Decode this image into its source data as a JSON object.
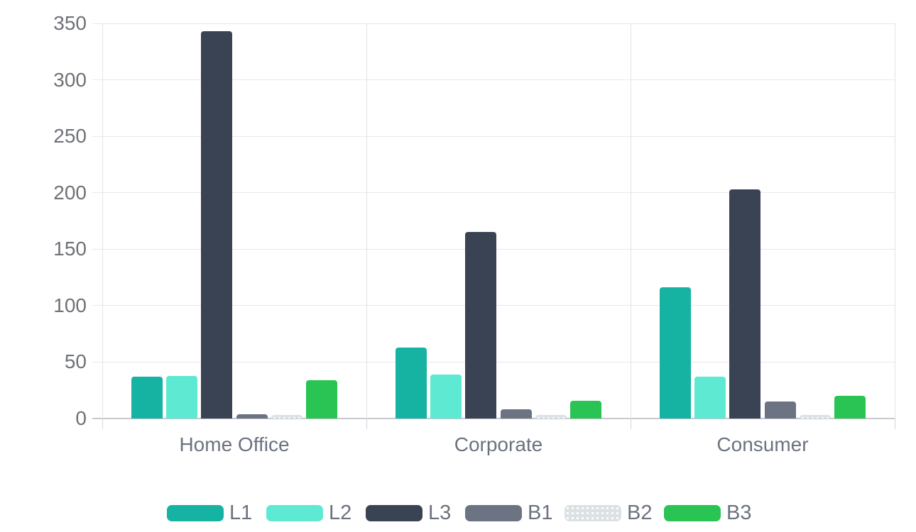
{
  "chart_data": {
    "type": "bar",
    "title": "",
    "xlabel": "",
    "ylabel": "",
    "categories": [
      "Home Office",
      "Corporate",
      "Consumer"
    ],
    "series": [
      {
        "name": "L1",
        "color": "#16b2a2",
        "pattern": "solid",
        "values": [
          37,
          63,
          116
        ]
      },
      {
        "name": "L2",
        "color": "#5ee9d3",
        "pattern": "solid",
        "values": [
          38,
          39,
          37
        ]
      },
      {
        "name": "L3",
        "color": "#394353",
        "pattern": "solid",
        "values": [
          343,
          165,
          203
        ]
      },
      {
        "name": "B1",
        "color": "#6c7383",
        "pattern": "solid",
        "values": [
          4,
          8,
          15
        ]
      },
      {
        "name": "B2",
        "color": "#dce1e4",
        "pattern": "dots",
        "values": [
          3,
          3,
          3
        ]
      },
      {
        "name": "B3",
        "color": "#2ac454",
        "pattern": "solid",
        "values": [
          34,
          16,
          20
        ]
      }
    ],
    "ylim": [
      0,
      350
    ],
    "yticks": [
      0,
      50,
      100,
      150,
      200,
      250,
      300,
      350
    ],
    "grid": true,
    "legend_position": "bottom"
  },
  "style": {
    "gridline_color": "#e7e8ea",
    "baseline_color": "#c6c9ce",
    "axis_line_color": "#e2e3e6",
    "tick_mark_color": "#d3d5d9",
    "y_tick_text_color": "#6e7177",
    "x_label_text_color": "#6b7280",
    "legend_text_color": "#6b7280",
    "background_color": "#ffffff"
  }
}
